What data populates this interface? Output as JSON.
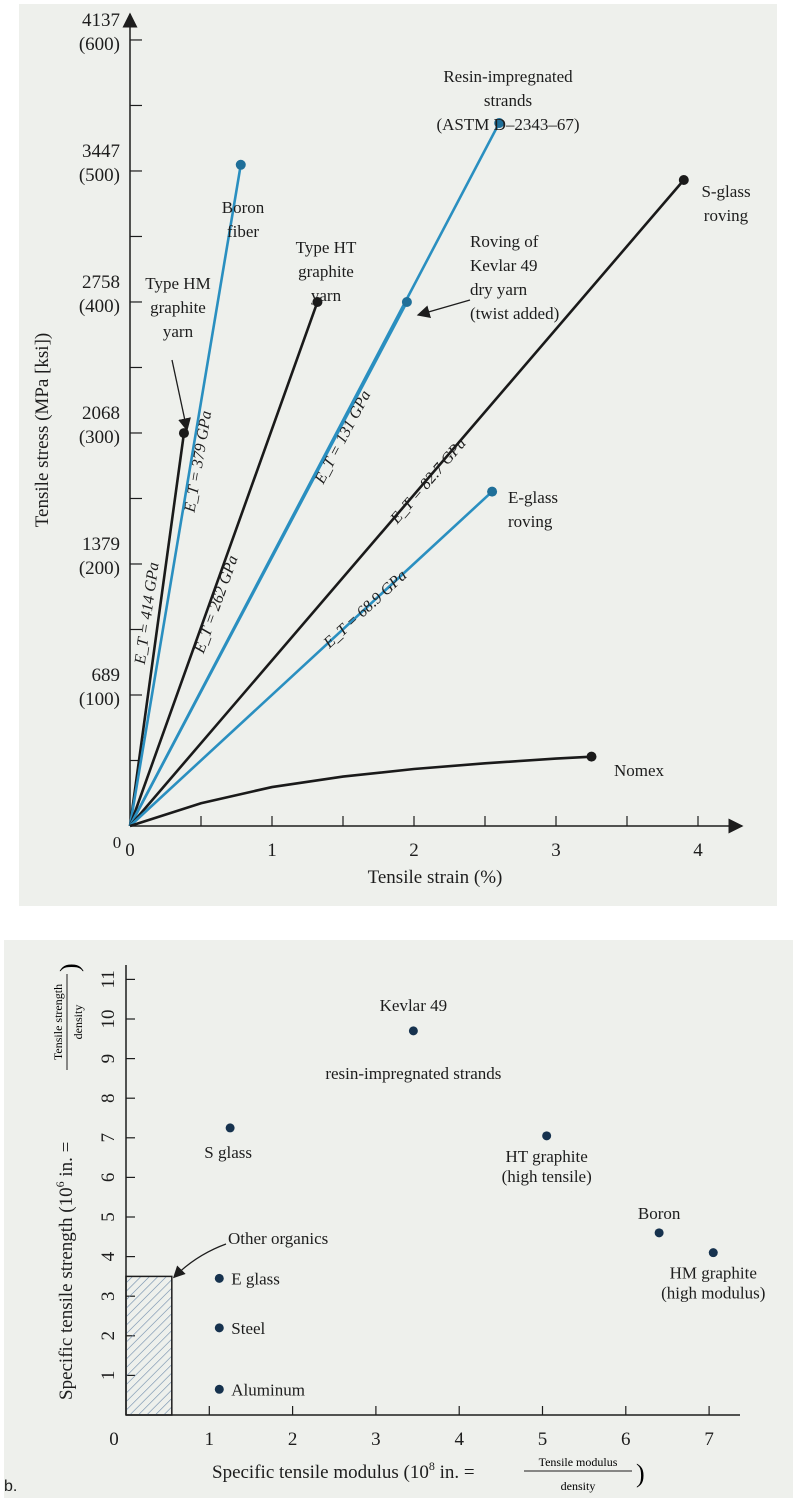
{
  "panel_b_tag": "b.",
  "chart_data": [
    {
      "type": "line",
      "xlabel": "Tensile strain (%)",
      "ylabel": "Tensile stress (MPa [ksi])",
      "xlim": [
        0,
        4.3
      ],
      "ylim": [
        0,
        4400
      ],
      "x_ticks": [
        "0",
        "1",
        "2",
        "3",
        "4"
      ],
      "y_tick_mpa": [
        "4137",
        "3447",
        "2758",
        "2068",
        "1379",
        "689"
      ],
      "y_tick_ksi": [
        "(600)",
        "(500)",
        "(400)",
        "(300)",
        "(200)",
        "(100)"
      ],
      "y_tick_values": [
        4137,
        3447,
        2758,
        2068,
        1379,
        689
      ],
      "grid": false,
      "series": [
        {
          "name": "Type HM graphite yarn",
          "x": [
            0,
            0.38
          ],
          "y": [
            0,
            2068
          ],
          "color": "#1a1a1a",
          "modulus": "E_T = 414 GPa"
        },
        {
          "name": "Boron fiber",
          "x": [
            0,
            0.78
          ],
          "y": [
            0,
            3480
          ],
          "color": "#2a8fc0",
          "modulus": "E_T = 379 GPa"
        },
        {
          "name": "Type HT graphite yarn",
          "x": [
            0,
            1.32
          ],
          "y": [
            0,
            2758
          ],
          "color": "#1a1a1a",
          "modulus": "E_T = 262 GPa"
        },
        {
          "name": "Resin-impregnated strands (ASTM D-2343-67)",
          "x": [
            0,
            2.6
          ],
          "y": [
            0,
            3700
          ],
          "color": "#2a8fc0",
          "modulus": "E_T = 131 GPa"
        },
        {
          "name": "Roving of Kevlar 49 dry yarn (twist added)",
          "x": [
            0,
            1.95
          ],
          "y": [
            0,
            2758
          ],
          "color": "#2a8fc0",
          "modulus": ""
        },
        {
          "name": "S-glass roving",
          "x": [
            0,
            3.9
          ],
          "y": [
            0,
            3400
          ],
          "color": "#1a1a1a",
          "modulus": "E_T = 82.7 GPa"
        },
        {
          "name": "E-glass roving",
          "x": [
            0,
            2.55
          ],
          "y": [
            0,
            1760
          ],
          "color": "#2a8fc0",
          "modulus": "E_T = 68.9 GPa"
        },
        {
          "name": "Nomex",
          "x": [
            0,
            0.5,
            1,
            1.5,
            2,
            2.5,
            3,
            3.25
          ],
          "y": [
            0,
            120,
            205,
            260,
            300,
            330,
            355,
            365
          ],
          "color": "#1a1a1a",
          "modulus": ""
        }
      ],
      "labels": {
        "resin_1": "Resin-impregnated",
        "resin_2": "strands",
        "resin_3": "(ASTM D–2343–67)",
        "sglass_1": "S-glass",
        "sglass_2": "roving",
        "boron_1": "Boron",
        "boron_2": "fiber",
        "ht_1": "Type HT",
        "ht_2": "graphite",
        "ht_3": "yarn",
        "hm_1": "Type HM",
        "hm_2": "graphite",
        "hm_3": "yarn",
        "kev_1": "Roving of",
        "kev_2": "Kevlar 49",
        "kev_3": "dry yarn",
        "kev_4": "(twist added)",
        "eglass_1": "E-glass",
        "eglass_2": "roving",
        "nomex": "Nomex"
      }
    },
    {
      "type": "scatter",
      "xlabel": "Specific tensile modulus (10⁸ in. = Tensile modulus/density)",
      "xlabel_main": "Specific tensile modulus",
      "xlabel_unit": "(10",
      "xlabel_exp": "8",
      "xlabel_rest": " in. =",
      "xlabel_num": "Tensile modulus",
      "xlabel_den": "density",
      "ylabel": "Specific tensile strength (10⁶ in. = Tensile strength/density)",
      "ylabel_main": "Specific tensile strength",
      "ylabel_unit": "(10",
      "ylabel_exp": "6",
      "ylabel_rest": " in. =",
      "ylabel_num": "Tensile strength",
      "ylabel_den": "density",
      "xlim": [
        0,
        7.5
      ],
      "ylim": [
        0,
        11.5
      ],
      "x_ticks": [
        "0",
        "1",
        "2",
        "3",
        "4",
        "5",
        "6",
        "7"
      ],
      "y_ticks": [
        "1",
        "2",
        "3",
        "4",
        "5",
        "6",
        "7",
        "8",
        "9",
        "10",
        "11"
      ],
      "grid": false,
      "points": [
        {
          "label": "Kevlar 49",
          "label2": "resin-impregnated strands",
          "x": 3.45,
          "y": 9.7
        },
        {
          "label": "S glass",
          "label2": "",
          "x": 1.25,
          "y": 7.25
        },
        {
          "label": "HT graphite",
          "label2": "(high tensile)",
          "x": 5.05,
          "y": 7.05
        },
        {
          "label": "Boron",
          "label2": "",
          "x": 6.4,
          "y": 4.6
        },
        {
          "label": "HM graphite",
          "label2": "(high modulus)",
          "x": 7.05,
          "y": 4.1
        },
        {
          "label": "E glass",
          "label2": "",
          "x": 1.12,
          "y": 3.45
        },
        {
          "label": "Steel",
          "label2": "",
          "x": 1.12,
          "y": 2.2
        },
        {
          "label": "Aluminum",
          "label2": "",
          "x": 1.12,
          "y": 0.65
        }
      ],
      "shaded_region": {
        "label": "Other organics",
        "x": [
          0,
          0.55
        ],
        "y": [
          0,
          3.5
        ]
      }
    }
  ]
}
